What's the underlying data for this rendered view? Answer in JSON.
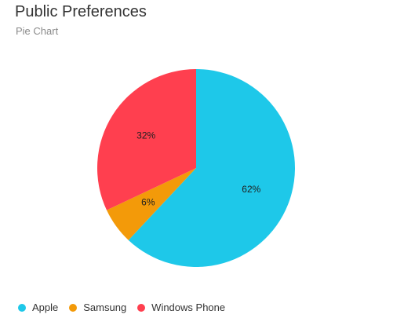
{
  "header": {
    "title": "Public Preferences",
    "subtitle": "Pie Chart"
  },
  "chart_data": {
    "type": "pie",
    "title": "Public Preferences",
    "subtitle": "Pie Chart",
    "categories": [
      "Apple",
      "Samsung",
      "Windows Phone"
    ],
    "values": [
      62,
      6,
      32
    ],
    "labels": [
      "62%",
      "6%",
      "32%"
    ],
    "colors": [
      "#1ec8e9",
      "#f39a09",
      "#ff3f4f"
    ],
    "legend": {
      "position": "bottom-left",
      "items": [
        {
          "label": "Apple",
          "color": "#1ec8e9"
        },
        {
          "label": "Samsung",
          "color": "#f39a09"
        },
        {
          "label": "Windows Phone",
          "color": "#ff3f4f"
        }
      ]
    }
  }
}
